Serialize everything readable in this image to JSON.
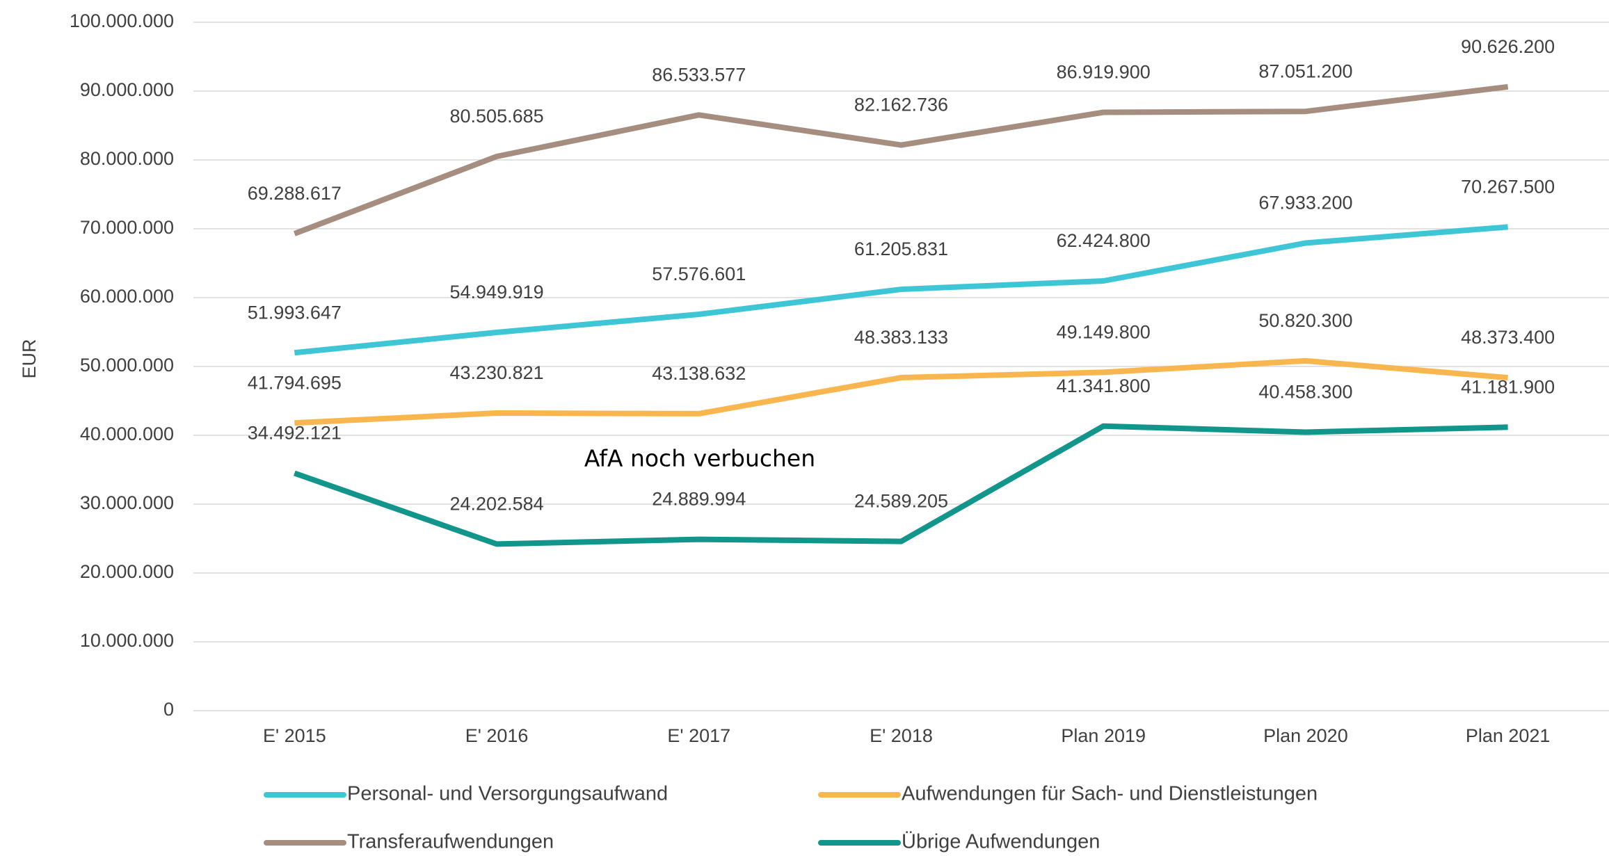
{
  "chart_data": {
    "type": "line",
    "y_label": "EUR",
    "annotation": "AfA noch verbuchen",
    "categories": [
      "E' 2015",
      "E' 2016",
      "E' 2017",
      "E' 2018",
      "Plan 2019",
      "Plan 2020",
      "Plan 2021"
    ],
    "ylim": [
      0,
      100000000
    ],
    "yticks": [
      {
        "value": 0,
        "label": "0"
      },
      {
        "value": 10000000,
        "label": "10.000.000"
      },
      {
        "value": 20000000,
        "label": "20.000.000"
      },
      {
        "value": 30000000,
        "label": "30.000.000"
      },
      {
        "value": 40000000,
        "label": "40.000.000"
      },
      {
        "value": 50000000,
        "label": "50.000.000"
      },
      {
        "value": 60000000,
        "label": "60.000.000"
      },
      {
        "value": 70000000,
        "label": "70.000.000"
      },
      {
        "value": 80000000,
        "label": "80.000.000"
      },
      {
        "value": 90000000,
        "label": "90.000.000"
      },
      {
        "value": 100000000,
        "label": "100.000.000"
      }
    ],
    "grid": true,
    "legend": "bottom",
    "series": [
      {
        "name": "Personal- und Versorgungsaufwand",
        "color": "#3ec6d6",
        "values": [
          51993647,
          54949919,
          57576601,
          61205831,
          62424800,
          67933200,
          70267500
        ],
        "value_labels": [
          "51.993.647",
          "54.949.919",
          "57.576.601",
          "61.205.831",
          "62.424.800",
          "67.933.200",
          "70.267.500"
        ]
      },
      {
        "name": "Aufwendungen für Sach- und Dienstleistungen",
        "color": "#f9b64e",
        "values": [
          41794695,
          43230821,
          43138632,
          48383133,
          49149800,
          50820300,
          48373400
        ],
        "value_labels": [
          "41.794.695",
          "43.230.821",
          "43.138.632",
          "48.383.133",
          "49.149.800",
          "50.820.300",
          "48.373.400"
        ]
      },
      {
        "name": "Transferaufwendungen",
        "color": "#a58d80",
        "values": [
          69288617,
          80505685,
          86533577,
          82162736,
          86919900,
          87051200,
          90626200
        ],
        "value_labels": [
          "69.288.617",
          "80.505.685",
          "86.533.577",
          "82.162.736",
          "86.919.900",
          "87.051.200",
          "90.626.200"
        ]
      },
      {
        "name": "Übrige Aufwendungen",
        "color": "#12958a",
        "values": [
          34492121,
          24202584,
          24889994,
          24589205,
          41341800,
          40458300,
          41181900
        ],
        "value_labels": [
          "34.492.121",
          "24.202.584",
          "24.889.994",
          "24.589.205",
          "41.341.800",
          "40.458.300",
          "41.181.900"
        ]
      }
    ]
  }
}
